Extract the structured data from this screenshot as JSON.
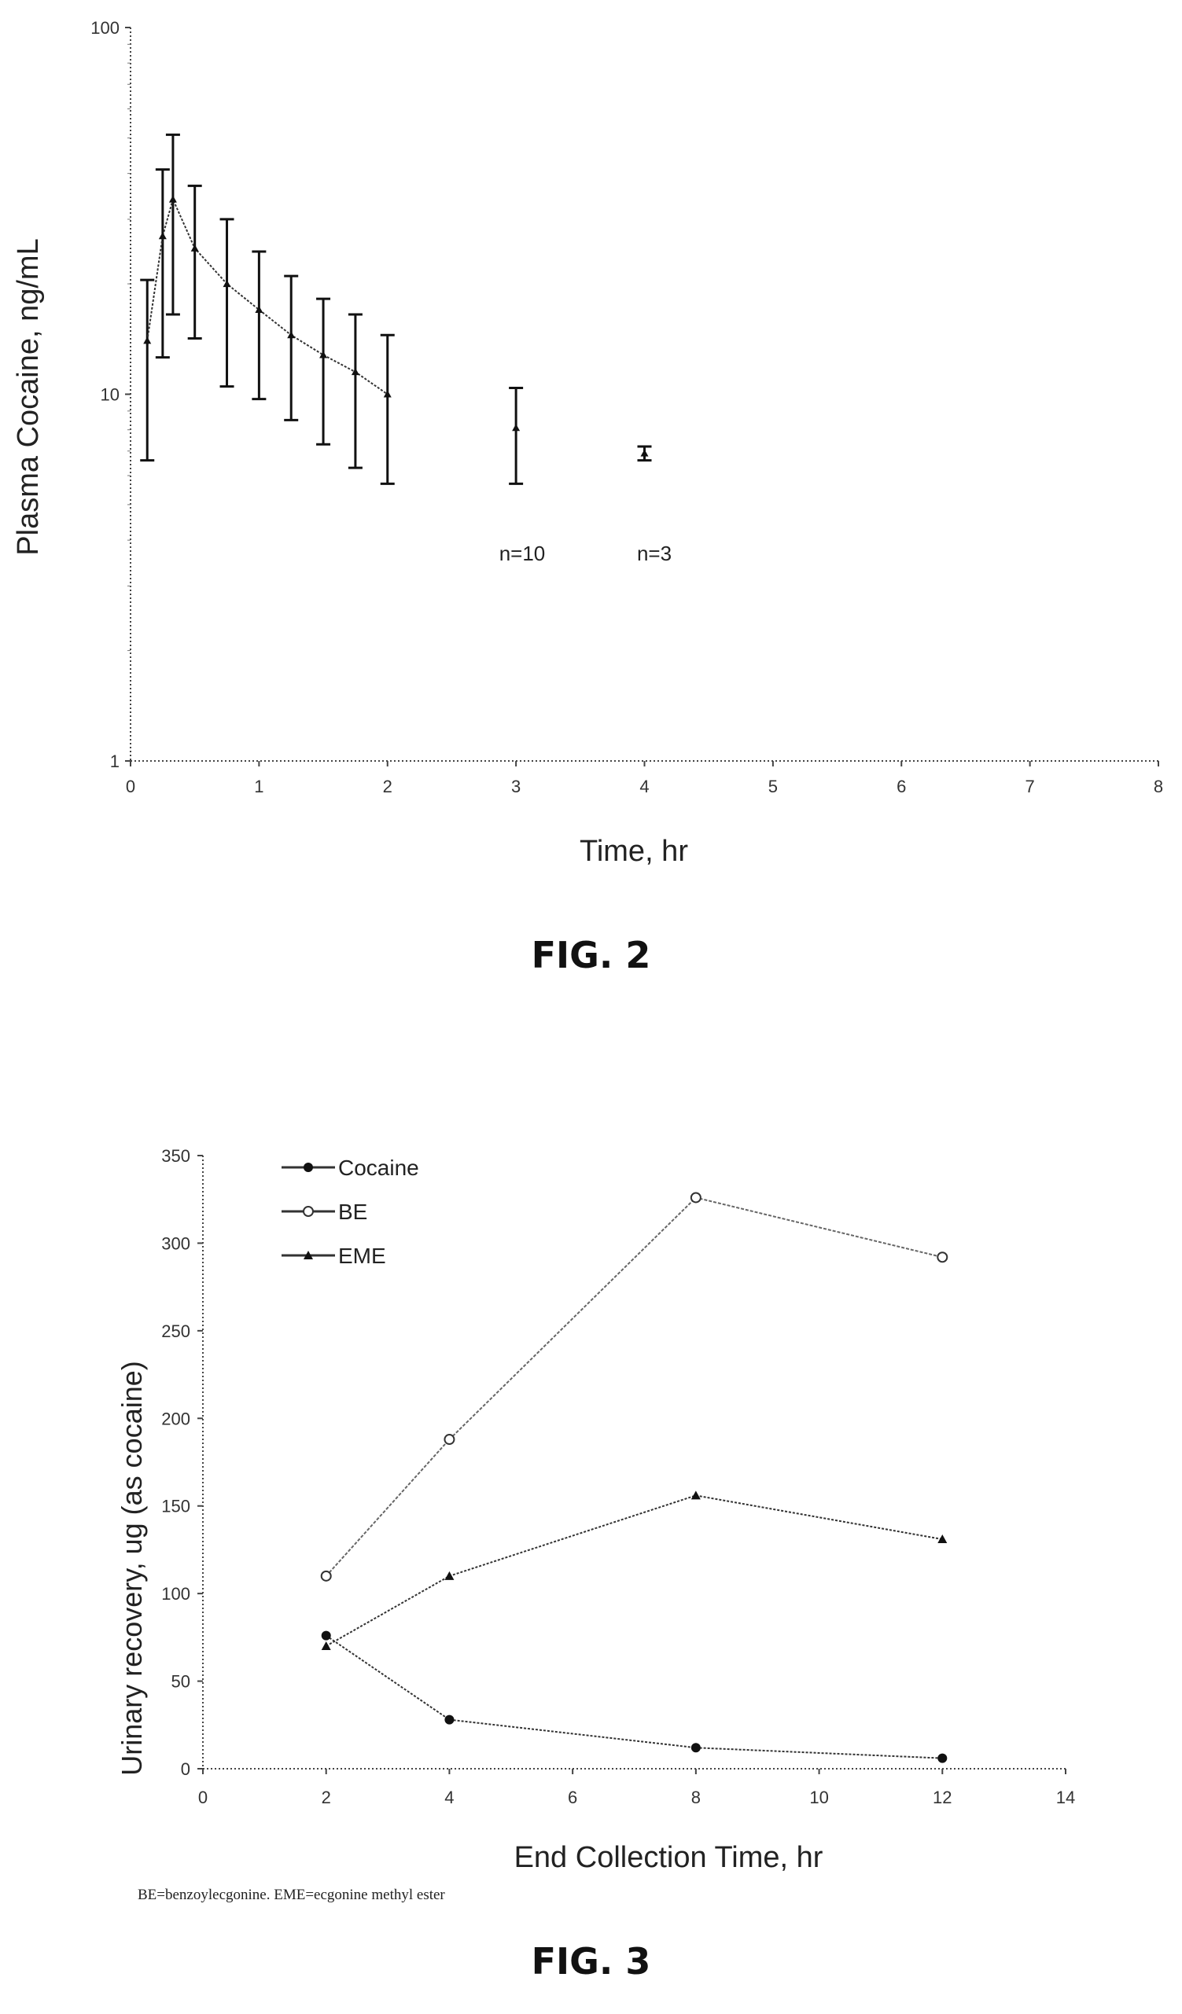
{
  "chart_data": [
    {
      "type": "line",
      "ylabel": "Plasma Cocaine, ng/mL",
      "xlabel": "Time, hr",
      "yscale": "log",
      "xlim": [
        0,
        8
      ],
      "ylim": [
        1,
        100
      ],
      "x_ticks": [
        "0",
        "1",
        "2",
        "3",
        "4",
        "5",
        "6",
        "7",
        "8"
      ],
      "y_ticks": [
        "1",
        "10",
        "100"
      ],
      "grid": false,
      "series": [
        {
          "x": [
            0.13,
            0.25,
            0.33,
            0.5,
            0.75,
            1.0,
            1.25,
            1.5,
            1.75,
            2.0,
            3.0,
            4.0
          ],
          "y": [
            14,
            27,
            34,
            25,
            20,
            17,
            14.5,
            12.8,
            11.5,
            10,
            8.1,
            6.9
          ],
          "error_low": [
            6.6,
            12.6,
            16.5,
            14.2,
            10.5,
            9.7,
            8.5,
            7.3,
            6.3,
            5.7,
            5.7,
            6.6
          ],
          "error_high": [
            20.5,
            41,
            51,
            37,
            30,
            24.5,
            21,
            18.2,
            16.5,
            14.5,
            10.4,
            7.2
          ]
        }
      ],
      "annotations": [
        "n=10",
        "n=3"
      ]
    },
    {
      "type": "line",
      "xlabel": "End Collection Time, hr",
      "ylabel": "Urinary recovery, ug (as cocaine)",
      "xlim": [
        0,
        14
      ],
      "ylim": [
        0,
        350
      ],
      "x_ticks": [
        "0",
        "2",
        "4",
        "6",
        "8",
        "10",
        "12",
        "14"
      ],
      "y_ticks": [
        "0",
        "50",
        "100",
        "150",
        "200",
        "250",
        "300",
        "350"
      ],
      "grid": false,
      "legend_position": "top-left",
      "x": [
        2,
        4,
        8,
        12
      ],
      "series": [
        {
          "name": "Cocaine",
          "marker": "filled-circle",
          "values": [
            76,
            28,
            12,
            6
          ]
        },
        {
          "name": "BE",
          "marker": "open-circle",
          "values": [
            110,
            188,
            326,
            292
          ]
        },
        {
          "name": "EME",
          "marker": "triangle",
          "values": [
            70,
            110,
            156,
            131
          ]
        }
      ]
    }
  ],
  "captions": {
    "fig2": "FIG. 2",
    "fig3": "FIG. 3"
  },
  "footnote": "BE=benzoylecgonine. EME=ecgonine methyl ester"
}
